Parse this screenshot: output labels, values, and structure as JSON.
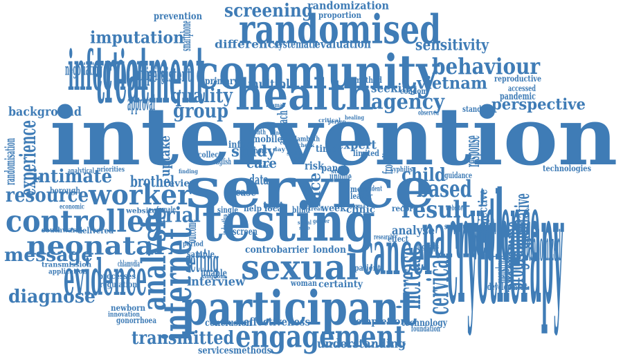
{
  "colors": {
    "primary": "#3f7cb6",
    "secondary": "#6f9ecb"
  },
  "words": [
    {
      "id": "intervention",
      "text": "intervention",
      "tone": "primary"
    },
    {
      "id": "service",
      "text": "service",
      "tone": "primary"
    },
    {
      "id": "testing",
      "text": "testing",
      "tone": "primary"
    },
    {
      "id": "participant",
      "text": "participant",
      "tone": "primary"
    },
    {
      "id": "community",
      "text": "community",
      "tone": "primary"
    },
    {
      "id": "health",
      "text": "health",
      "tone": "primary"
    },
    {
      "id": "randomised",
      "text": "randomised",
      "tone": "primary"
    },
    {
      "id": "sexual",
      "text": "sexual",
      "tone": "primary"
    },
    {
      "id": "engagement",
      "text": "engagement",
      "tone": "primary"
    },
    {
      "id": "controlled",
      "text": "controlled",
      "tone": "primary"
    },
    {
      "id": "worker",
      "text": "worker",
      "tone": "primary"
    },
    {
      "id": "treatment",
      "text": "treatment",
      "tone": "primary"
    },
    {
      "id": "cryotherapy",
      "text": "cryotherapy",
      "tone": "primary"
    },
    {
      "id": "internet",
      "text": "internet",
      "tone": "primary"
    },
    {
      "id": "analysis",
      "text": "analysis",
      "tone": "primary"
    },
    {
      "id": "cancer",
      "text": "cancer",
      "tone": "primary"
    },
    {
      "id": "partner",
      "text": "partner",
      "tone": "primary"
    },
    {
      "id": "violence",
      "text": "violence",
      "tone": "primary"
    },
    {
      "id": "neonatal",
      "text": "neonatal",
      "tone": "primary"
    },
    {
      "id": "evidence",
      "text": "evidence",
      "tone": "primary"
    },
    {
      "id": "behaviour",
      "text": "behaviour",
      "tone": "primary"
    },
    {
      "id": "infection",
      "text": "infection",
      "tone": "primary"
    },
    {
      "id": "screening",
      "text": "screening",
      "tone": "primary"
    },
    {
      "id": "imputation",
      "text": "imputation",
      "tone": "primary"
    },
    {
      "id": "quality",
      "text": "quality",
      "tone": "primary"
    },
    {
      "id": "group",
      "text": "group",
      "tone": "primary"
    },
    {
      "id": "agency",
      "text": "agency",
      "tone": "primary"
    },
    {
      "id": "vietnam",
      "text": "vietnam",
      "tone": "primary"
    },
    {
      "id": "result",
      "text": "result",
      "tone": "primary"
    },
    {
      "id": "based",
      "text": "based",
      "tone": "primary"
    },
    {
      "id": "child",
      "text": "child",
      "tone": "primary"
    },
    {
      "id": "trial",
      "text": "trial",
      "tone": "primary"
    },
    {
      "id": "resource",
      "text": "resource",
      "tone": "primary"
    },
    {
      "id": "intimate",
      "text": "intimate",
      "tone": "primary"
    },
    {
      "id": "message",
      "text": "message",
      "tone": "primary"
    },
    {
      "id": "diagnose",
      "text": "diagnose",
      "tone": "primary"
    },
    {
      "id": "transmitted",
      "text": "transmitted",
      "tone": "primary"
    },
    {
      "id": "understanding",
      "text": "understanding",
      "tone": "primary"
    },
    {
      "id": "randomization",
      "text": "randomization",
      "tone": "primary"
    },
    {
      "id": "sensitivity",
      "text": "sensitivity",
      "tone": "primary"
    },
    {
      "id": "perspective",
      "text": "perspective",
      "tone": "primary"
    },
    {
      "id": "background",
      "text": "background",
      "tone": "primary"
    },
    {
      "id": "experience",
      "text": "experience",
      "tone": "primary"
    },
    {
      "id": "cervical",
      "text": "cervical",
      "tone": "primary"
    },
    {
      "id": "increase",
      "text": "increase",
      "tone": "primary"
    },
    {
      "id": "effectiveness",
      "text": "effectiveness",
      "tone": "primary"
    },
    {
      "id": "interview",
      "text": "interview",
      "tone": "primary"
    },
    {
      "id": "setting",
      "text": "setting",
      "tone": "primary"
    },
    {
      "id": "multiple",
      "text": "multiple",
      "tone": "primary"
    },
    {
      "id": "seeking",
      "text": "seeking",
      "tone": "primary"
    },
    {
      "id": "study",
      "text": "study",
      "tone": "primary"
    },
    {
      "id": "uptake",
      "text": "uptake",
      "tone": "primary"
    },
    {
      "id": "brothel",
      "text": "brothel",
      "tone": "primary"
    },
    {
      "id": "expert",
      "text": "expert",
      "tone": "primary"
    },
    {
      "id": "care",
      "text": "care",
      "tone": "primary"
    },
    {
      "id": "face",
      "text": "face",
      "tone": "primary"
    },
    {
      "id": "programme",
      "text": "programme",
      "tone": "primary"
    },
    {
      "id": "qualitative",
      "text": "qualitative",
      "tone": "primary"
    },
    {
      "id": "analyse",
      "text": "analyse",
      "tone": "primary"
    },
    {
      "id": "completion",
      "text": "completion",
      "tone": "primary"
    },
    {
      "id": "technology",
      "text": "technology",
      "tone": "primary"
    },
    {
      "id": "servicesmethods",
      "text": "servicesmethods",
      "tone": "primary"
    },
    {
      "id": "conclusion",
      "text": "conclusion",
      "tone": "primary"
    },
    {
      "id": "certainty",
      "text": "certainty",
      "tone": "primary"
    },
    {
      "id": "control",
      "text": "control",
      "tone": "primary"
    },
    {
      "id": "barrier",
      "text": "barrier",
      "tone": "primary"
    },
    {
      "id": "london",
      "text": "london",
      "tone": "primary"
    },
    {
      "id": "week",
      "text": "week",
      "tone": "primary"
    },
    {
      "id": "clinic",
      "text": "clinic",
      "tone": "primary"
    },
    {
      "id": "review",
      "text": "review",
      "tone": "primary"
    },
    {
      "id": "data",
      "text": "data",
      "tone": "primary"
    },
    {
      "id": "test",
      "text": "test",
      "tone": "primary"
    },
    {
      "id": "mobile",
      "text": "mobile",
      "tone": "primary"
    },
    {
      "id": "time",
      "text": "time",
      "tone": "primary"
    },
    {
      "id": "infant",
      "text": "infant",
      "tone": "primary"
    },
    {
      "id": "primary",
      "text": "primary",
      "tone": "primary"
    },
    {
      "id": "approach",
      "text": "approach",
      "tone": "primary"
    },
    {
      "id": "persistent",
      "text": "persistent",
      "tone": "primary"
    },
    {
      "id": "difference",
      "text": "difference",
      "tone": "primary"
    },
    {
      "id": "systematic",
      "text": "systematic",
      "tone": "primary"
    },
    {
      "id": "evaluation",
      "text": "evaluation",
      "tone": "primary"
    },
    {
      "id": "proportion",
      "text": "proportion",
      "tone": "primary"
    },
    {
      "id": "prevention",
      "text": "prevention",
      "tone": "primary"
    },
    {
      "id": "negotiating",
      "text": "negotiating",
      "tone": "primary"
    },
    {
      "id": "achieving",
      "text": "achieving",
      "tone": "primary"
    },
    {
      "id": "smartphone",
      "text": "smartphone",
      "tone": "primary"
    },
    {
      "id": "approval",
      "text": "approval",
      "tone": "primary"
    },
    {
      "id": "method",
      "text": "method",
      "tone": "primary"
    },
    {
      "id": "condom",
      "text": "condom",
      "tone": "primary"
    },
    {
      "id": "reproductive",
      "text": "reproductive",
      "tone": "primary"
    },
    {
      "id": "accessed",
      "text": "accessed",
      "tone": "primary"
    },
    {
      "id": "pandemic",
      "text": "pandemic",
      "tone": "primary"
    },
    {
      "id": "standard",
      "text": "standard",
      "tone": "primary"
    },
    {
      "id": "response",
      "text": "response",
      "tone": "primary"
    },
    {
      "id": "objective",
      "text": "objective",
      "tone": "primary"
    },
    {
      "id": "randomized",
      "text": "randomized",
      "tone": "primary"
    },
    {
      "id": "technologies",
      "text": "technologies",
      "tone": "primary"
    },
    {
      "id": "guidance",
      "text": "guidance",
      "tone": "primary"
    },
    {
      "id": "development",
      "text": "development",
      "tone": "primary"
    },
    {
      "id": "menstrual",
      "text": "menstrual",
      "tone": "primary"
    },
    {
      "id": "foundation",
      "text": "foundation",
      "tone": "primary"
    },
    {
      "id": "subgroup",
      "text": "subgroup",
      "tone": "primary"
    },
    {
      "id": "websites",
      "text": "websites",
      "tone": "primary"
    },
    {
      "id": "effect",
      "text": "effect",
      "tone": "primary"
    },
    {
      "id": "research",
      "text": "research",
      "tone": "primary"
    },
    {
      "id": "patient",
      "text": "patient",
      "tone": "primary"
    },
    {
      "id": "record",
      "text": "record",
      "tone": "primary"
    },
    {
      "id": "meta",
      "text": "meta",
      "tone": "primary"
    },
    {
      "id": "leader",
      "text": "leader",
      "tone": "primary"
    },
    {
      "id": "woman",
      "text": "woman",
      "tone": "primary"
    },
    {
      "id": "unable",
      "text": "unable",
      "tone": "primary"
    },
    {
      "id": "screen",
      "text": "screen",
      "tone": "primary"
    },
    {
      "id": "help",
      "text": "help",
      "tone": "primary"
    },
    {
      "id": "local",
      "text": "local",
      "tone": "primary"
    },
    {
      "id": "single",
      "text": "single",
      "tone": "primary"
    },
    {
      "id": "case",
      "text": "case",
      "tone": "primary"
    },
    {
      "id": "risk",
      "text": "risk",
      "tone": "primary"
    },
    {
      "id": "panel",
      "text": "panel",
      "tone": "primary"
    },
    {
      "id": "limited",
      "text": "limited",
      "tone": "primary"
    },
    {
      "id": "frontline",
      "text": "frontline",
      "tone": "primary"
    },
    {
      "id": "short",
      "text": "short",
      "tone": "primary"
    },
    {
      "id": "month",
      "text": "month",
      "tone": "primary"
    },
    {
      "id": "collect",
      "text": "collect",
      "tone": "primary"
    },
    {
      "id": "blind",
      "text": "blind",
      "tone": "primary"
    },
    {
      "id": "randomisation",
      "text": "randomisation",
      "tone": "primary"
    },
    {
      "id": "analytical",
      "text": "analytical",
      "tone": "primary"
    },
    {
      "id": "borough",
      "text": "borough",
      "tone": "primary"
    },
    {
      "id": "economic",
      "text": "economic",
      "tone": "primary"
    },
    {
      "id": "southwark",
      "text": "southwark",
      "tone": "primary"
    },
    {
      "id": "delivered",
      "text": "delivered",
      "tone": "primary"
    },
    {
      "id": "transmission",
      "text": "transmission",
      "tone": "primary"
    },
    {
      "id": "application",
      "text": "application",
      "tone": "primary"
    },
    {
      "id": "processes",
      "text": "processes",
      "tone": "primary"
    },
    {
      "id": "regulation",
      "text": "regulation",
      "tone": "primary"
    },
    {
      "id": "chlamydia",
      "text": "chlamydia",
      "tone": "primary"
    },
    {
      "id": "newborn",
      "text": "newborn",
      "tone": "primary"
    },
    {
      "id": "innovation",
      "text": "innovation",
      "tone": "primary"
    },
    {
      "id": "gonorrhoea",
      "text": "gonorrhoea",
      "tone": "primary"
    },
    {
      "id": "website",
      "text": "website",
      "tone": "primary"
    },
    {
      "id": "female",
      "text": "female",
      "tone": "primary"
    },
    {
      "id": "outcome",
      "text": "outcome",
      "tone": "primary"
    },
    {
      "id": "period",
      "text": "period",
      "tone": "primary"
    },
    {
      "id": "sample",
      "text": "sample",
      "tone": "primary"
    },
    {
      "id": "kingdom",
      "text": "kingdom",
      "tone": "primary"
    },
    {
      "id": "priorities",
      "text": "priorities",
      "tone": "primary"
    },
    {
      "id": "english",
      "text": "english",
      "tone": "primary"
    },
    {
      "id": "unique",
      "text": "unique",
      "tone": "primary"
    },
    {
      "id": "syphilis",
      "text": "syphilis",
      "tone": "primary"
    },
    {
      "id": "lambeth",
      "text": "lambeth",
      "tone": "primary"
    },
    {
      "id": "thomas",
      "text": "thomas",
      "tone": "primary"
    },
    {
      "id": "critical",
      "text": "critical",
      "tone": "primary"
    },
    {
      "id": "observed",
      "text": "observed",
      "tone": "primary"
    },
    {
      "id": "healing",
      "text": "healing",
      "tone": "primary"
    },
    {
      "id": "check",
      "text": "check",
      "tone": "primary"
    },
    {
      "id": "store",
      "text": "store",
      "tone": "primary"
    },
    {
      "id": "self",
      "text": "self",
      "tone": "primary"
    },
    {
      "id": "last",
      "text": "last",
      "tone": "primary"
    },
    {
      "id": "day",
      "text": "day",
      "tone": "primary"
    },
    {
      "id": "acc",
      "text": "acc",
      "tone": "primary"
    },
    {
      "id": "person",
      "text": "person",
      "tone": "primary"
    },
    {
      "id": "hinder",
      "text": "hinder",
      "tone": "primary"
    },
    {
      "id": "diagnosis",
      "text": "diagnosis",
      "tone": "primary"
    },
    {
      "id": "resident",
      "text": "resident",
      "tone": "primary"
    },
    {
      "id": "finding",
      "text": "finding",
      "tone": "primary"
    },
    {
      "id": "stigma",
      "text": "stigma",
      "tone": "primary"
    },
    {
      "id": "treat",
      "text": "treat",
      "tone": "primary"
    },
    {
      "id": "inductive",
      "text": "inductive",
      "tone": "primary"
    },
    {
      "id": "social",
      "text": "social",
      "tone": "primary"
    },
    {
      "id": "gender",
      "text": "gender",
      "tone": "primary"
    },
    {
      "id": "site",
      "text": "site",
      "tone": "primary"
    }
  ]
}
